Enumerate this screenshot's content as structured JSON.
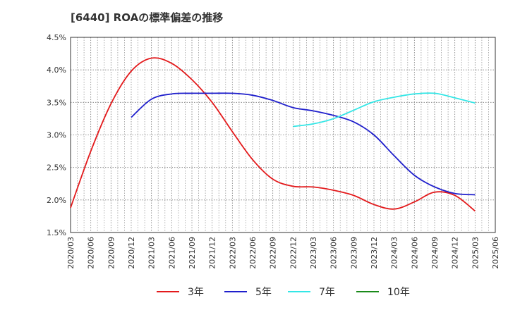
{
  "title": "[6440]  ROAの標準偏差の推移",
  "chart_data": {
    "type": "line",
    "title": "[6440]  ROAの標準偏差の推移",
    "xlabel": "",
    "ylabel": "",
    "ylim": [
      1.5,
      4.5
    ],
    "yticks": [
      "1.5%",
      "2.0%",
      "2.5%",
      "3.0%",
      "3.5%",
      "4.0%",
      "4.5%"
    ],
    "x": [
      "2020/03",
      "2020/06",
      "2020/09",
      "2020/12",
      "2021/03",
      "2021/06",
      "2021/09",
      "2021/12",
      "2022/03",
      "2022/06",
      "2022/09",
      "2022/12",
      "2023/03",
      "2023/06",
      "2023/09",
      "2023/12",
      "2024/03",
      "2024/06",
      "2024/09",
      "2024/12",
      "2025/03",
      "2025/06"
    ],
    "grid": true,
    "legend_position": "bottom",
    "series": [
      {
        "name": "3年",
        "color": "#e31a1c",
        "points": [
          [
            "2020/03",
            1.88
          ],
          [
            "2020/06",
            2.75
          ],
          [
            "2020/09",
            3.48
          ],
          [
            "2020/12",
            3.98
          ],
          [
            "2021/03",
            4.18
          ],
          [
            "2021/06",
            4.1
          ],
          [
            "2021/09",
            3.85
          ],
          [
            "2021/12",
            3.5
          ],
          [
            "2022/03",
            3.05
          ],
          [
            "2022/06",
            2.62
          ],
          [
            "2022/09",
            2.32
          ],
          [
            "2022/12",
            2.21
          ],
          [
            "2023/03",
            2.2
          ],
          [
            "2023/06",
            2.15
          ],
          [
            "2023/09",
            2.07
          ],
          [
            "2023/12",
            1.93
          ],
          [
            "2024/03",
            1.86
          ],
          [
            "2024/06",
            1.97
          ],
          [
            "2024/09",
            2.12
          ],
          [
            "2024/12",
            2.07
          ],
          [
            "2025/03",
            1.83
          ]
        ]
      },
      {
        "name": "5年",
        "color": "#1f1fcc",
        "points": [
          [
            "2020/12",
            3.27
          ],
          [
            "2021/03",
            3.55
          ],
          [
            "2021/06",
            3.63
          ],
          [
            "2021/09",
            3.64
          ],
          [
            "2021/12",
            3.64
          ],
          [
            "2022/03",
            3.64
          ],
          [
            "2022/06",
            3.61
          ],
          [
            "2022/09",
            3.53
          ],
          [
            "2022/12",
            3.42
          ],
          [
            "2023/03",
            3.37
          ],
          [
            "2023/06",
            3.3
          ],
          [
            "2023/09",
            3.2
          ],
          [
            "2023/12",
            3.0
          ],
          [
            "2024/03",
            2.68
          ],
          [
            "2024/06",
            2.38
          ],
          [
            "2024/09",
            2.2
          ],
          [
            "2024/12",
            2.1
          ],
          [
            "2025/03",
            2.08
          ]
        ]
      },
      {
        "name": "7年",
        "color": "#33e6e6",
        "points": [
          [
            "2022/12",
            3.13
          ],
          [
            "2023/03",
            3.17
          ],
          [
            "2023/06",
            3.25
          ],
          [
            "2023/09",
            3.38
          ],
          [
            "2023/12",
            3.51
          ],
          [
            "2024/03",
            3.58
          ],
          [
            "2024/06",
            3.63
          ],
          [
            "2024/09",
            3.64
          ],
          [
            "2024/12",
            3.57
          ],
          [
            "2025/03",
            3.49
          ]
        ]
      },
      {
        "name": "10年",
        "color": "#1a8a1a",
        "points": []
      }
    ]
  }
}
